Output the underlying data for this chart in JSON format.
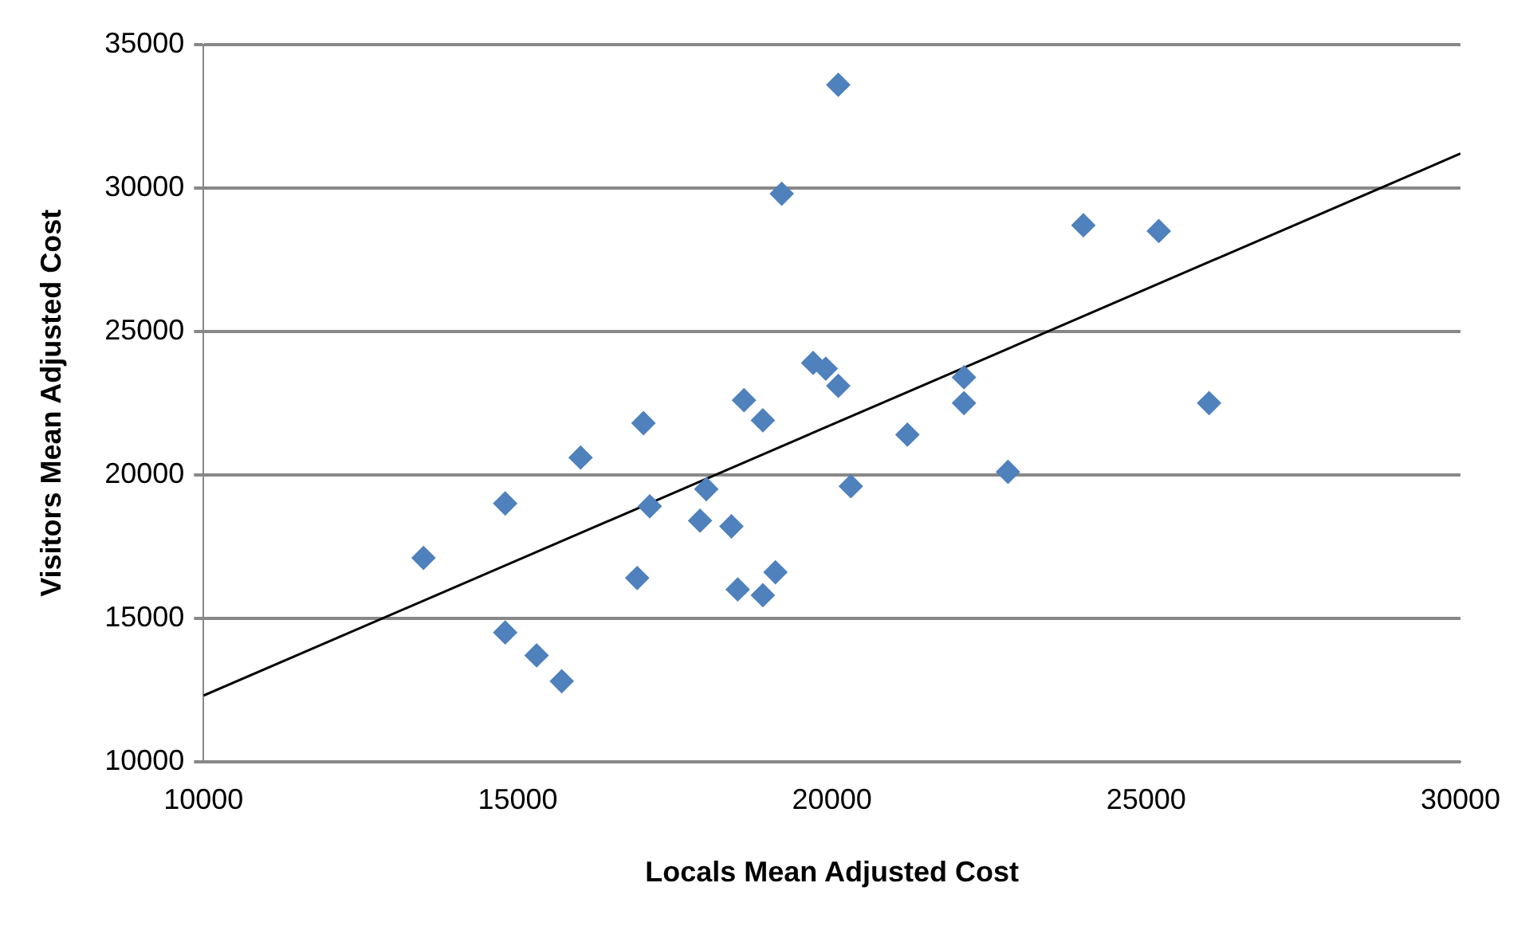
{
  "chart_data": {
    "type": "scatter",
    "xlabel": "Locals Mean Adjusted Cost",
    "ylabel": "Visitors Mean Adjusted Cost",
    "xlim": [
      10000,
      30000
    ],
    "xticks": [
      10000,
      15000,
      20000,
      25000,
      30000
    ],
    "ylim": [
      10000,
      35000
    ],
    "yticks": [
      10000,
      15000,
      20000,
      25000,
      30000,
      35000
    ],
    "grid": "y",
    "legend": false,
    "marker": "diamond",
    "series": [
      {
        "color": "#4f81bd",
        "x": [
          13500,
          14800,
          14800,
          15300,
          15700,
          16000,
          16900,
          17000,
          17100,
          18000,
          17900,
          18400,
          18500,
          18600,
          18900,
          18900,
          19100,
          19200,
          19700,
          19900,
          20100,
          20100,
          20300,
          21200,
          22100,
          22100,
          22800,
          24000,
          25200,
          26000
        ],
        "values": [
          17100,
          19000,
          14500,
          13700,
          12800,
          20600,
          16400,
          21800,
          18900,
          19500,
          18400,
          18200,
          16000,
          22600,
          15800,
          21900,
          16600,
          29800,
          23900,
          23700,
          23100,
          33600,
          19600,
          21400,
          23400,
          22500,
          20100,
          28700,
          28500,
          22500
        ]
      },
      {
        "type": "line",
        "color": "#000000",
        "marker": "none",
        "line_style": "solid",
        "x": [
          10000,
          30000
        ],
        "values": [
          12300,
          31200
        ]
      }
    ]
  }
}
